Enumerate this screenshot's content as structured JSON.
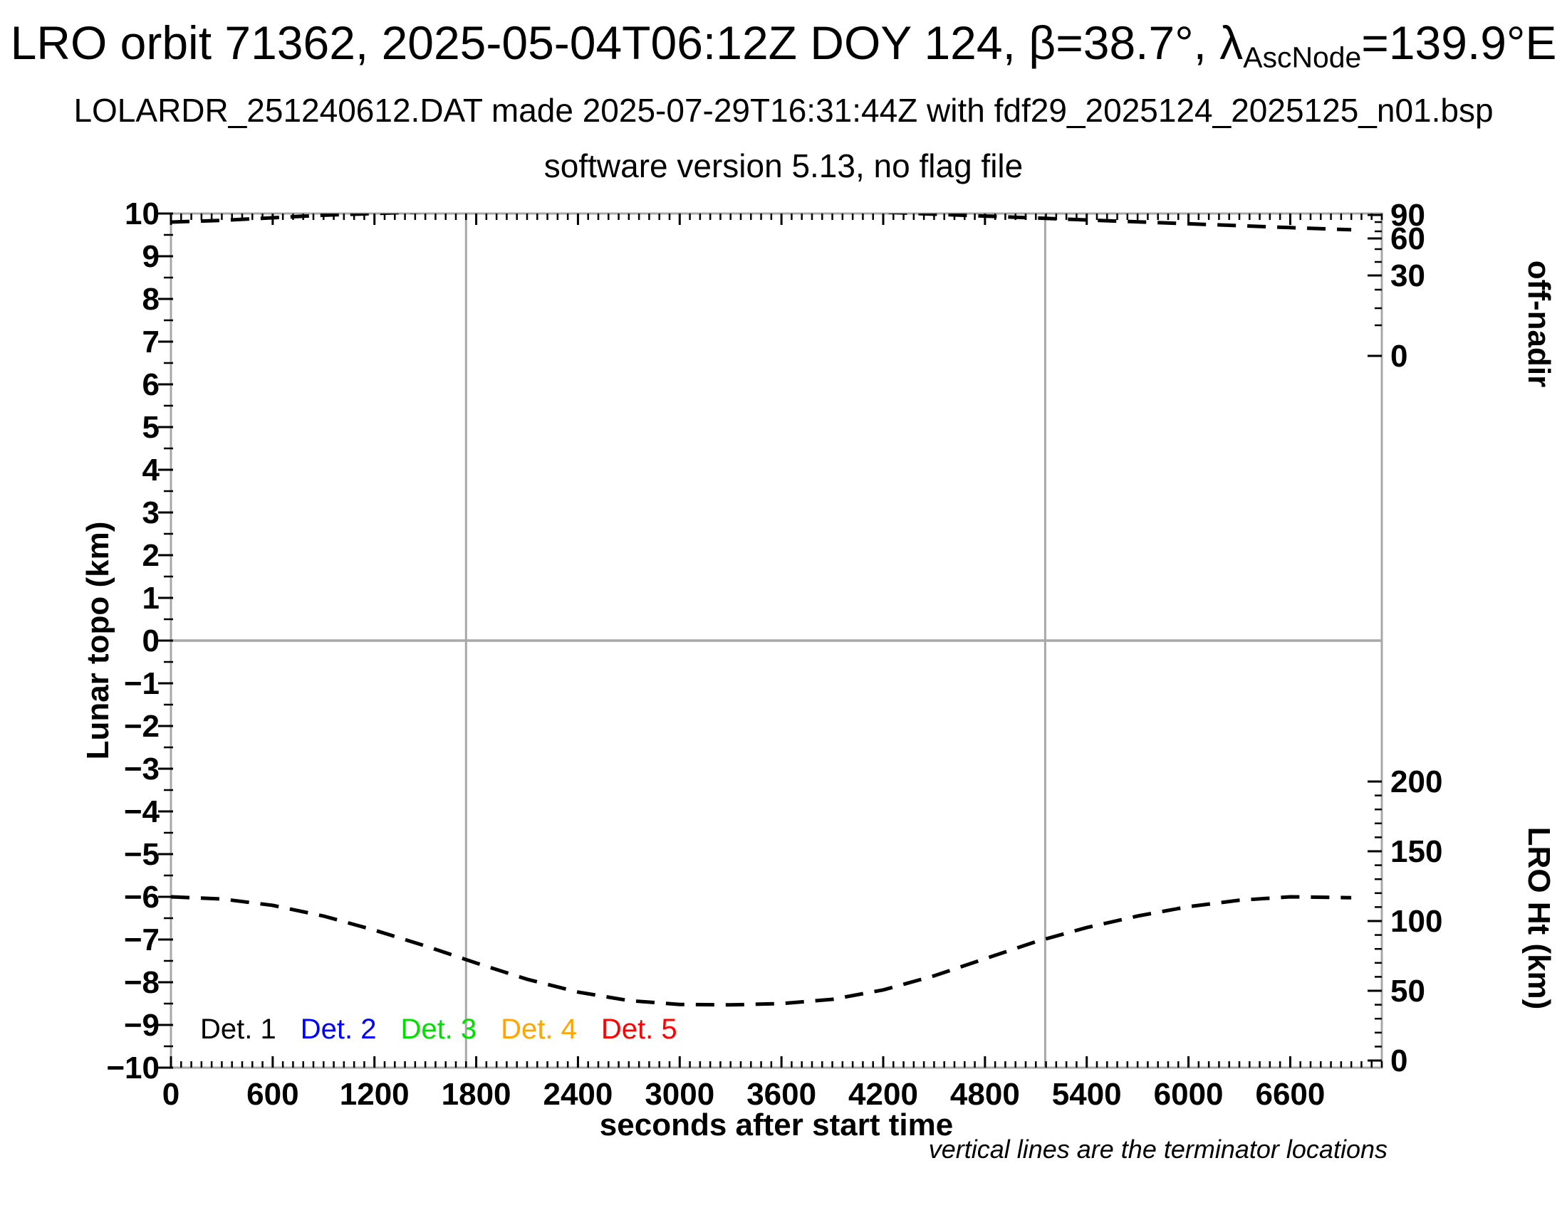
{
  "header": {
    "title_pre": "LRO orbit 71362, 2025-05-04T06:12Z DOY 124, β=38.7°, λ",
    "title_sub": "AscNode",
    "title_post": "=139.9°E",
    "subtitle1": "LOLARDR_251240612.DAT made 2025-07-29T16:31:44Z with fdf29_2025124_2025125_n01.bsp",
    "subtitle2": "software version 5.13, no flag file"
  },
  "axes": {
    "x": {
      "label": "seconds after start time",
      "ticks": [
        0,
        600,
        1200,
        1800,
        2400,
        3000,
        3600,
        4200,
        4800,
        5400,
        6000,
        6600
      ],
      "minor_step": 60,
      "range": [
        0,
        7140
      ]
    },
    "y_left": {
      "label": "Lunar topo (km)",
      "ticks": [
        10,
        9,
        8,
        7,
        6,
        5,
        4,
        3,
        2,
        1,
        0,
        -1,
        -2,
        -3,
        -4,
        -5,
        -6,
        -7,
        -8,
        -9,
        -10
      ],
      "minor_step": 0.5,
      "range": [
        -10,
        10
      ]
    },
    "y_right_top": {
      "label": "off-nadir",
      "ticks": [
        90,
        60,
        30,
        0
      ]
    },
    "y_right_bottom": {
      "label": "LRO Ht (km)",
      "ticks": [
        200,
        150,
        100,
        50,
        0
      ],
      "minor_step": 10
    }
  },
  "legend": {
    "items": [
      {
        "label": "Det. 1",
        "color": "#000000"
      },
      {
        "label": "Det. 2",
        "color": "#0000ff"
      },
      {
        "label": "Det. 3",
        "color": "#00dd00"
      },
      {
        "label": "Det. 4",
        "color": "#ffa500"
      },
      {
        "label": "Det. 5",
        "color": "#ff0000"
      }
    ]
  },
  "note": "vertical lines are the terminator locations",
  "terminators_s": [
    1740,
    5155
  ],
  "colors": {
    "frame": "#a8a8a8",
    "curve": "#000000",
    "det2_blue": "#0000ff",
    "det3_green": "#00dd00",
    "det4_orange": "#ffa500",
    "det5_red": "#ff0000"
  },
  "chart_data": {
    "type": "line",
    "title": "LRO orbit 71362, 2025-05-04T06:12Z DOY 124, β=38.7°, λAscNode=139.9°E",
    "subtitle": "LOLARDR_251240612.DAT made 2025-07-29T16:31:44Z with fdf29_2025124_2025125_n01.bsp — software version 5.13, no flag file",
    "xlabel": "seconds after start time",
    "ylabel_left": "Lunar topo (km)",
    "ylabel_right_top": "off-nadir",
    "ylabel_right_bottom": "LRO Ht (km)",
    "xlim": [
      0,
      7140
    ],
    "ylim_left": [
      -10,
      10
    ],
    "right_axis_offnadir_ticks": [
      90,
      60,
      30,
      0
    ],
    "right_axis_ht_ticks_km": [
      200,
      150,
      100,
      50,
      0
    ],
    "grid": "horizontal gray line at Lunar topo = 0; two vertical gray terminator lines",
    "terminator_lines_x_s": [
      1740,
      5155
    ],
    "legend_entries": [
      "Det. 1",
      "Det. 2",
      "Det. 3",
      "Det. 4",
      "Det. 5"
    ],
    "annotation": "vertical lines are the terminator locations",
    "series": [
      {
        "id": "lro-height-curve",
        "name": "LRO height (black dashed, read on right LRO Ht (km) axis)",
        "style": "dashed black",
        "x": [
          0,
          300,
          600,
          900,
          1200,
          1500,
          1800,
          2100,
          2400,
          2700,
          3000,
          3300,
          3600,
          3900,
          4200,
          4500,
          4800,
          5100,
          5400,
          5700,
          6000,
          6300,
          6600,
          6960
        ],
        "y_topo_axis_units": [
          -6.0,
          -6.05,
          -6.2,
          -6.45,
          -6.78,
          -7.15,
          -7.55,
          -7.93,
          -8.23,
          -8.43,
          -8.52,
          -8.53,
          -8.5,
          -8.4,
          -8.18,
          -7.85,
          -7.45,
          -7.05,
          -6.72,
          -6.45,
          -6.23,
          -6.08,
          -6.0,
          -6.02
        ],
        "y_lro_ht_km": [
          117,
          116,
          111,
          104,
          94,
          82,
          70,
          58,
          49,
          43,
          40,
          40,
          41,
          44,
          51,
          61,
          73,
          85,
          95,
          104,
          110,
          115,
          117,
          117
        ]
      },
      {
        "id": "off-nadir-curve",
        "name": "off-nadir angle (black dashed, read on right off-nadir axis; clipped at plot top ~1500–4400 s)",
        "style": "dashed black",
        "x": [
          0,
          300,
          600,
          900,
          1200,
          1600,
          2200,
          2800,
          3400,
          4000,
          4400,
          4800,
          5400,
          6000,
          6600,
          6960
        ],
        "y_topo_axis_units": [
          9.8,
          9.84,
          9.9,
          9.96,
          10.0,
          10.06,
          10.12,
          10.15,
          10.13,
          10.07,
          10.0,
          9.94,
          9.85,
          9.76,
          9.67,
          9.62
        ],
        "y_off_nadir_deg_approx": [
          80,
          82,
          85,
          88,
          90,
          90,
          90,
          90,
          90,
          90,
          90,
          88,
          84,
          79,
          74,
          72
        ]
      }
    ]
  }
}
